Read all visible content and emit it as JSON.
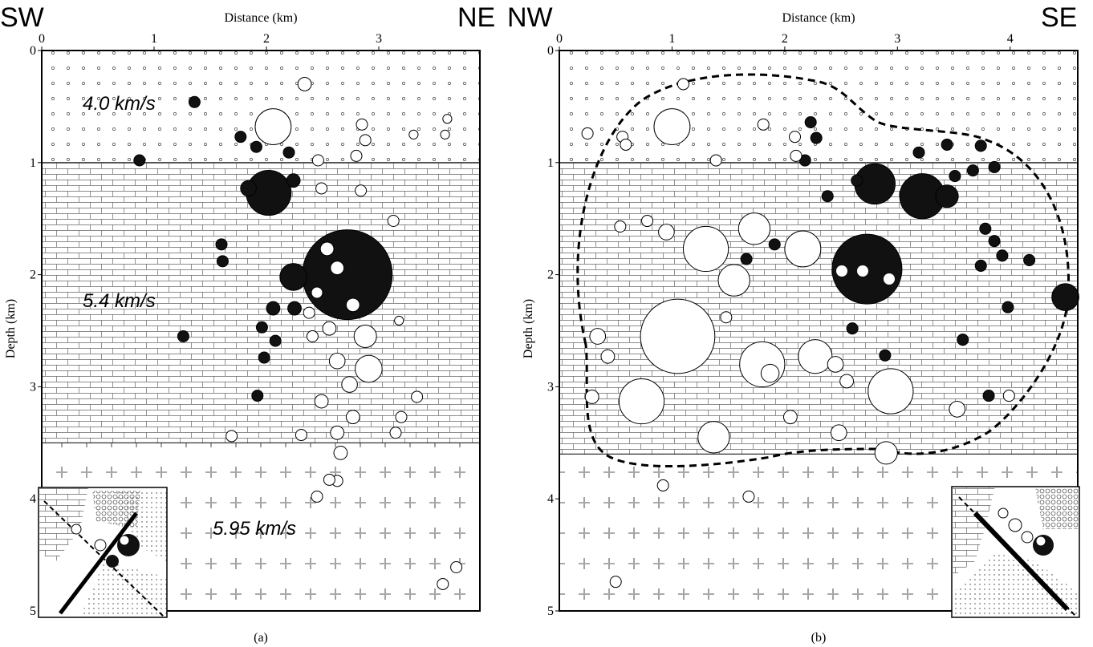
{
  "chart_data": [
    {
      "type": "scatter",
      "left_label": "SW",
      "right_label": "NE",
      "xlabel": "Distance (km)",
      "ylabel": "Depth (km)",
      "caption": "(a)",
      "xlim": [
        0,
        3.9
      ],
      "ylim": [
        0,
        5
      ],
      "xticks": [
        0,
        1,
        2,
        3
      ],
      "yticks": [
        0,
        1,
        2,
        3,
        4,
        5
      ],
      "layers": [
        {
          "top": 0,
          "bottom": 1,
          "pattern": "dots",
          "label": "4.0 km/s"
        },
        {
          "top": 1,
          "bottom": 3.5,
          "pattern": "bricks",
          "label": "5.4 km/s"
        },
        {
          "top": 3.5,
          "bottom": 5,
          "pattern": "crosses",
          "label": "5.95 km/s"
        }
      ],
      "series": [
        {
          "fill": "#111111",
          "x": [
            1.36,
            0.87,
            1.77,
            1.91,
            2.2,
            2.02,
            1.84,
            2.24,
            1.6,
            1.61,
            2.72,
            2.24,
            2.25,
            2.06,
            1.26,
            1.96,
            2.08,
            1.98,
            1.92
          ],
          "y": [
            0.46,
            0.98,
            0.77,
            0.86,
            0.91,
            1.27,
            1.23,
            1.16,
            1.73,
            1.88,
            2.0,
            2.02,
            2.3,
            2.3,
            2.55,
            2.47,
            2.59,
            2.74,
            3.08
          ],
          "sizes": [
            0.05,
            0.05,
            0.05,
            0.05,
            0.05,
            0.2,
            0.07,
            0.06,
            0.05,
            0.05,
            0.4,
            0.12,
            0.06,
            0.06,
            0.05,
            0.05,
            0.05,
            0.05,
            0.05
          ]
        },
        {
          "fill": "#ffffff",
          "x": [
            2.34,
            2.06,
            2.85,
            2.88,
            2.8,
            3.31,
            3.61,
            3.59,
            2.46,
            2.49,
            2.84,
            2.54,
            2.63,
            2.45,
            2.77,
            2.56,
            2.88,
            2.63,
            2.91,
            2.74,
            2.49,
            2.77,
            2.63,
            2.66,
            2.63,
            3.13,
            3.18,
            3.34,
            3.2,
            3.15,
            2.31,
            1.69,
            2.45,
            2.56,
            3.69,
            3.57,
            2.38,
            2.41
          ],
          "y": [
            0.3,
            0.68,
            0.66,
            0.8,
            0.94,
            0.75,
            0.61,
            0.75,
            0.98,
            1.23,
            1.25,
            1.77,
            1.94,
            2.16,
            2.27,
            2.48,
            2.55,
            2.77,
            2.84,
            2.98,
            3.13,
            3.27,
            3.41,
            3.59,
            3.84,
            1.52,
            2.41,
            3.09,
            3.27,
            3.41,
            3.43,
            3.44,
            3.98,
            3.83,
            4.61,
            4.76,
            2.34,
            2.55
          ],
          "sizes": [
            0.06,
            0.16,
            0.05,
            0.05,
            0.05,
            0.04,
            0.04,
            0.04,
            0.05,
            0.05,
            0.05,
            0.06,
            0.06,
            0.05,
            0.06,
            0.06,
            0.1,
            0.07,
            0.12,
            0.07,
            0.06,
            0.06,
            0.06,
            0.06,
            0.05,
            0.05,
            0.04,
            0.05,
            0.05,
            0.05,
            0.05,
            0.05,
            0.05,
            0.05,
            0.05,
            0.05,
            0.05,
            0.05
          ]
        }
      ]
    },
    {
      "type": "scatter",
      "left_label": "NW",
      "right_label": "SE",
      "xlabel": "Distance (km)",
      "ylabel": "Depth (km)",
      "caption": "(b)",
      "xlim": [
        0,
        4.6
      ],
      "ylim": [
        0,
        5
      ],
      "xticks": [
        0,
        1,
        2,
        3,
        4
      ],
      "yticks": [
        0,
        1,
        2,
        3,
        4,
        5
      ],
      "layers": [
        {
          "top": 0,
          "bottom": 1,
          "pattern": "dots"
        },
        {
          "top": 1,
          "bottom": 3.6,
          "pattern": "bricks"
        },
        {
          "top": 3.6,
          "bottom": 5,
          "pattern": "crosses"
        }
      ],
      "series": [
        {
          "fill": "#111111",
          "x": [
            2.73,
            2.8,
            3.22,
            3.44,
            2.23,
            2.28,
            2.18,
            3.19,
            3.44,
            3.74,
            3.86,
            3.67,
            3.51,
            2.38,
            2.64,
            3.78,
            3.86,
            3.93,
            3.74,
            4.17,
            4.49,
            3.98,
            2.6,
            2.89,
            3.58,
            3.81,
            1.66,
            1.91,
            1.3
          ],
          "y": [
            1.95,
            1.19,
            1.3,
            1.3,
            0.64,
            0.78,
            0.98,
            0.91,
            0.84,
            0.85,
            1.04,
            1.07,
            1.12,
            1.3,
            1.16,
            1.59,
            1.7,
            1.83,
            1.92,
            1.87,
            2.2,
            2.29,
            2.48,
            2.72,
            2.58,
            3.08,
            1.86,
            1.73,
            2.54
          ],
          "sizes": [
            0.31,
            0.18,
            0.2,
            0.1,
            0.05,
            0.05,
            0.05,
            0.05,
            0.05,
            0.05,
            0.05,
            0.05,
            0.05,
            0.05,
            0.05,
            0.05,
            0.05,
            0.05,
            0.05,
            0.05,
            0.12,
            0.05,
            0.05,
            0.05,
            0.05,
            0.05,
            0.05,
            0.05,
            0.05
          ]
        },
        {
          "fill": "#ffffff",
          "x": [
            1.0,
            1.1,
            0.25,
            0.56,
            0.59,
            1.81,
            2.09,
            2.1,
            1.39,
            0.54,
            0.78,
            0.95,
            1.17,
            1.3,
            1.73,
            2.16,
            1.55,
            1.05,
            0.73,
            1.37,
            1.8,
            2.27,
            2.94,
            2.9,
            0.29,
            0.34,
            0.43,
            2.45,
            3.53,
            3.99,
            0.92,
            1.68,
            0.5,
            2.48,
            2.05,
            1.48,
            1.87,
            2.55
          ],
          "y": [
            0.68,
            0.3,
            0.74,
            0.77,
            0.84,
            0.66,
            0.77,
            0.94,
            0.98,
            1.57,
            1.52,
            1.62,
            1.73,
            1.77,
            1.59,
            1.77,
            2.05,
            2.55,
            3.13,
            3.45,
            2.8,
            2.73,
            3.04,
            3.59,
            3.09,
            2.55,
            2.73,
            2.8,
            3.2,
            3.08,
            3.88,
            3.98,
            4.74,
            3.41,
            3.27,
            2.38,
            2.88,
            2.95
          ],
          "sizes": [
            0.16,
            0.05,
            0.05,
            0.05,
            0.05,
            0.05,
            0.05,
            0.05,
            0.05,
            0.05,
            0.05,
            0.07,
            0.06,
            0.2,
            0.14,
            0.16,
            0.14,
            0.33,
            0.2,
            0.14,
            0.2,
            0.15,
            0.2,
            0.1,
            0.06,
            0.07,
            0.06,
            0.07,
            0.07,
            0.05,
            0.05,
            0.05,
            0.05,
            0.07,
            0.06,
            0.05,
            0.08,
            0.06
          ]
        }
      ]
    }
  ]
}
